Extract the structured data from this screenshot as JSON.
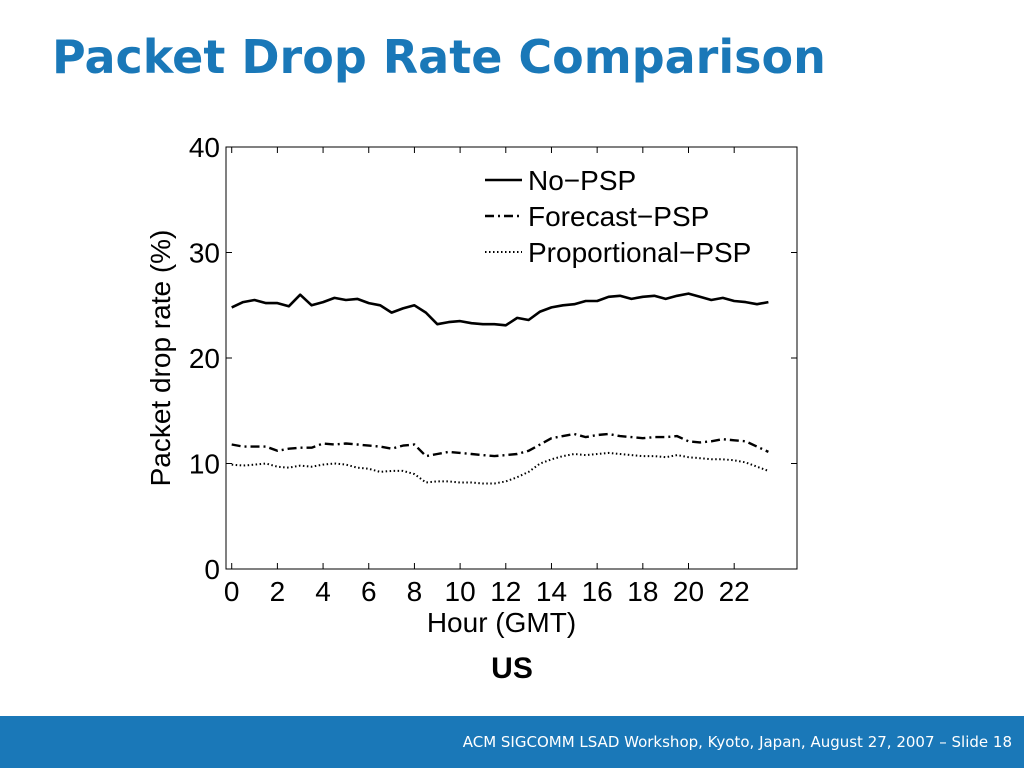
{
  "slide": {
    "title": "Packet Drop Rate Comparison",
    "caption": "US",
    "footer": "ACM SIGCOMM LSAD Workshop, Kyoto, Japan, August 27, 2007 – Slide 18"
  },
  "colors": {
    "title": "#1a78b8",
    "footer_bar": "#1a78b8",
    "footer_text": "#ffffff",
    "series": "#000000"
  },
  "chart_data": {
    "type": "line",
    "title": "",
    "xlabel": "Hour (GMT)",
    "ylabel": "Packet drop rate (%)",
    "xlim": [
      -0.25,
      24.75
    ],
    "ylim": [
      0,
      40
    ],
    "x_ticks": [
      0,
      2,
      4,
      6,
      8,
      10,
      12,
      14,
      16,
      18,
      20,
      22
    ],
    "y_ticks": [
      0,
      10,
      20,
      30,
      40
    ],
    "grid": false,
    "legend_position": "top-right",
    "x": [
      0,
      0.5,
      1,
      1.5,
      2,
      2.5,
      3,
      3.5,
      4,
      4.5,
      5,
      5.5,
      6,
      6.5,
      7,
      7.5,
      8,
      8.5,
      9,
      9.5,
      10,
      10.5,
      11,
      11.5,
      12,
      12.5,
      13,
      13.5,
      14,
      14.5,
      15,
      15.5,
      16,
      16.5,
      17,
      17.5,
      18,
      18.5,
      19,
      19.5,
      20,
      20.5,
      21,
      21.5,
      22,
      22.5,
      23,
      23.5
    ],
    "series": [
      {
        "name": "No−PSP",
        "style": "solid",
        "values": [
          24.8,
          25.3,
          25.5,
          25.2,
          25.2,
          24.9,
          26.0,
          25.0,
          25.3,
          25.7,
          25.5,
          25.6,
          25.2,
          25.0,
          24.3,
          24.7,
          25.0,
          24.3,
          23.2,
          23.4,
          23.5,
          23.3,
          23.2,
          23.2,
          23.1,
          23.8,
          23.6,
          24.4,
          24.8,
          25.0,
          25.1,
          25.4,
          25.4,
          25.8,
          25.9,
          25.6,
          25.8,
          25.9,
          25.6,
          25.9,
          26.1,
          25.8,
          25.5,
          25.7,
          25.4,
          25.3,
          25.1,
          25.3
        ]
      },
      {
        "name": "Forecast−PSP",
        "style": "dashdot",
        "values": [
          11.8,
          11.6,
          11.6,
          11.6,
          11.2,
          11.4,
          11.5,
          11.5,
          11.9,
          11.8,
          11.9,
          11.8,
          11.7,
          11.6,
          11.4,
          11.7,
          11.8,
          10.7,
          10.9,
          11.1,
          11.0,
          10.9,
          10.8,
          10.7,
          10.8,
          10.9,
          11.2,
          11.8,
          12.4,
          12.6,
          12.8,
          12.5,
          12.7,
          12.8,
          12.6,
          12.5,
          12.4,
          12.5,
          12.5,
          12.6,
          12.1,
          12.0,
          12.1,
          12.3,
          12.2,
          12.1,
          11.6,
          11.1
        ]
      },
      {
        "name": "Proportional−PSP",
        "style": "dotted",
        "values": [
          9.9,
          9.8,
          9.9,
          10.0,
          9.7,
          9.6,
          9.8,
          9.7,
          9.9,
          10.0,
          9.9,
          9.6,
          9.5,
          9.2,
          9.3,
          9.3,
          9.0,
          8.2,
          8.3,
          8.3,
          8.2,
          8.2,
          8.1,
          8.1,
          8.3,
          8.7,
          9.2,
          10.0,
          10.4,
          10.7,
          10.9,
          10.8,
          10.9,
          11.0,
          10.9,
          10.8,
          10.7,
          10.7,
          10.6,
          10.8,
          10.6,
          10.5,
          10.4,
          10.4,
          10.3,
          10.1,
          9.7,
          9.3
        ]
      }
    ]
  }
}
